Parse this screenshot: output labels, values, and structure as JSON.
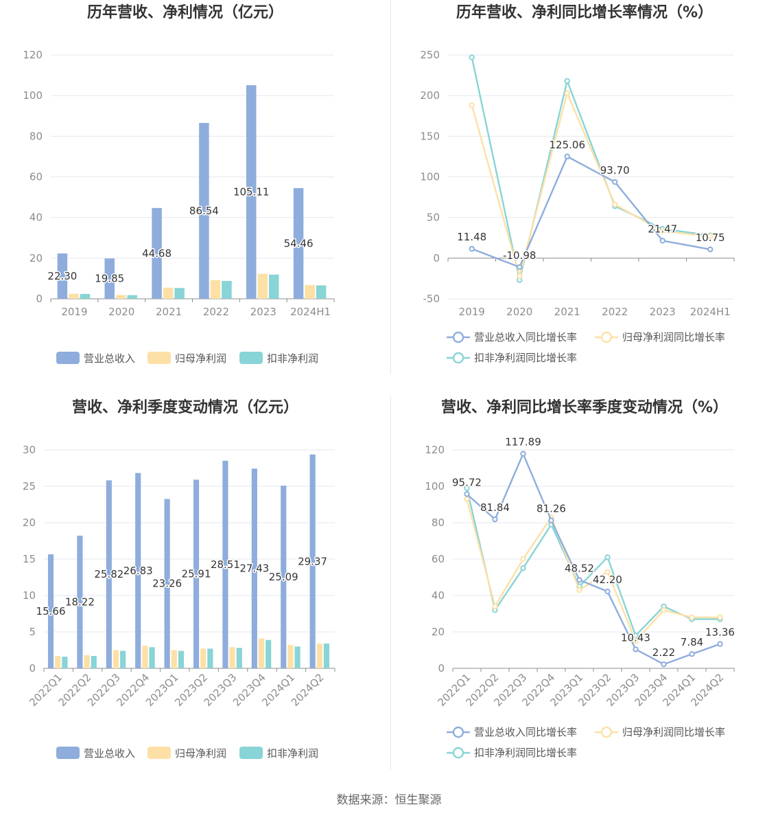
{
  "source_text": "数据来源：恒生聚源",
  "colors": {
    "revenue": "#8eaddc",
    "net": "#fde0a6",
    "net_ex": "#88d4d6",
    "grid": "#e5e7f0",
    "axis": "#8c8c8c"
  },
  "chart_data": [
    {
      "id": "annual-bar",
      "type": "bar",
      "title": "历年营收、净利情况（亿元）",
      "categories": [
        "2019",
        "2020",
        "2021",
        "2022",
        "2023",
        "2024H1"
      ],
      "ylim": [
        0,
        120
      ],
      "yticks": [
        0,
        20,
        40,
        60,
        80,
        100,
        120
      ],
      "rotate_x": false,
      "series": [
        {
          "name": "营业总收入",
          "values": [
            22.3,
            19.85,
            44.68,
            86.54,
            105.11,
            54.46
          ],
          "labels": [
            "22.30",
            "19.85",
            "44.68",
            "86.54",
            "105.11",
            "54.46"
          ]
        },
        {
          "name": "归母净利润",
          "values": [
            2.5,
            1.9,
            5.5,
            9.2,
            12.3,
            6.8
          ]
        },
        {
          "name": "扣非净利润",
          "values": [
            2.4,
            1.8,
            5.3,
            8.8,
            11.9,
            6.6
          ]
        }
      ],
      "legend": "bottom"
    },
    {
      "id": "annual-growth",
      "type": "line",
      "title": "历年营收、净利同比增长率情况（%）",
      "categories": [
        "2019",
        "2020",
        "2021",
        "2022",
        "2023",
        "2024H1"
      ],
      "ylim": [
        -50,
        250
      ],
      "yticks": [
        -50,
        0,
        50,
        100,
        150,
        200,
        250
      ],
      "rotate_x": false,
      "series": [
        {
          "name": "营业总收入同比增长率",
          "values": [
            11.48,
            -10.98,
            125.06,
            93.7,
            21.47,
            10.75
          ],
          "labels": [
            "11.48",
            "-10.98",
            "125.06",
            "93.70",
            "21.47",
            "10.75"
          ]
        },
        {
          "name": "归母净利润同比增长率",
          "values": [
            188,
            -22,
            203,
            66,
            33,
            27
          ]
        },
        {
          "name": "扣非净利润同比增长率",
          "values": [
            247,
            -27,
            218,
            64,
            36,
            28
          ]
        }
      ],
      "legend": "bottom"
    },
    {
      "id": "quarterly-bar",
      "type": "bar",
      "title": "营收、净利季度变动情况（亿元）",
      "categories": [
        "2022Q1",
        "2022Q2",
        "2022Q3",
        "2022Q4",
        "2023Q1",
        "2023Q2",
        "2023Q3",
        "2023Q4",
        "2024Q1",
        "2024Q2"
      ],
      "ylim": [
        0,
        30
      ],
      "yticks": [
        0,
        5,
        10,
        15,
        20,
        25,
        30
      ],
      "rotate_x": true,
      "series": [
        {
          "name": "营业总收入",
          "values": [
            15.66,
            18.22,
            25.82,
            26.83,
            23.26,
            25.91,
            28.51,
            27.43,
            25.09,
            29.37
          ],
          "labels": [
            "15.66",
            "18.22",
            "25.82",
            "26.83",
            "23.26",
            "25.91",
            "28.51",
            "27.43",
            "25.09",
            "29.37"
          ]
        },
        {
          "name": "归母净利润",
          "values": [
            1.7,
            1.8,
            2.5,
            3.1,
            2.5,
            2.7,
            2.9,
            4.1,
            3.2,
            3.4
          ]
        },
        {
          "name": "扣非净利润",
          "values": [
            1.6,
            1.7,
            2.4,
            2.9,
            2.4,
            2.7,
            2.8,
            3.9,
            3.0,
            3.4
          ]
        }
      ],
      "legend": "bottom"
    },
    {
      "id": "quarterly-growth",
      "type": "line",
      "title": "营收、净利同比增长率季度变动情况（%）",
      "categories": [
        "2022Q1",
        "2022Q2",
        "2022Q3",
        "2022Q4",
        "2023Q1",
        "2023Q2",
        "2023Q3",
        "2023Q4",
        "2024Q1",
        "2024Q2"
      ],
      "ylim": [
        0,
        120
      ],
      "yticks": [
        0,
        20,
        40,
        60,
        80,
        100,
        120
      ],
      "rotate_x": true,
      "series": [
        {
          "name": "营业总收入同比增长率",
          "values": [
            95.72,
            81.84,
            117.89,
            81.26,
            48.52,
            42.2,
            10.43,
            2.22,
            7.84,
            13.36
          ],
          "labels": [
            "95.72",
            "81.84",
            "117.89",
            "81.26",
            "48.52",
            "42.20",
            "10.43",
            "2.22",
            "7.84",
            "13.36"
          ]
        },
        {
          "name": "归母净利润同比增长率",
          "values": [
            93,
            34,
            60,
            83,
            43,
            53,
            15,
            32,
            28,
            28
          ]
        },
        {
          "name": "扣非净利润同比增长率",
          "values": [
            99,
            32,
            55,
            79,
            45,
            61,
            18,
            34,
            27,
            27
          ]
        }
      ],
      "legend": "bottom"
    }
  ]
}
